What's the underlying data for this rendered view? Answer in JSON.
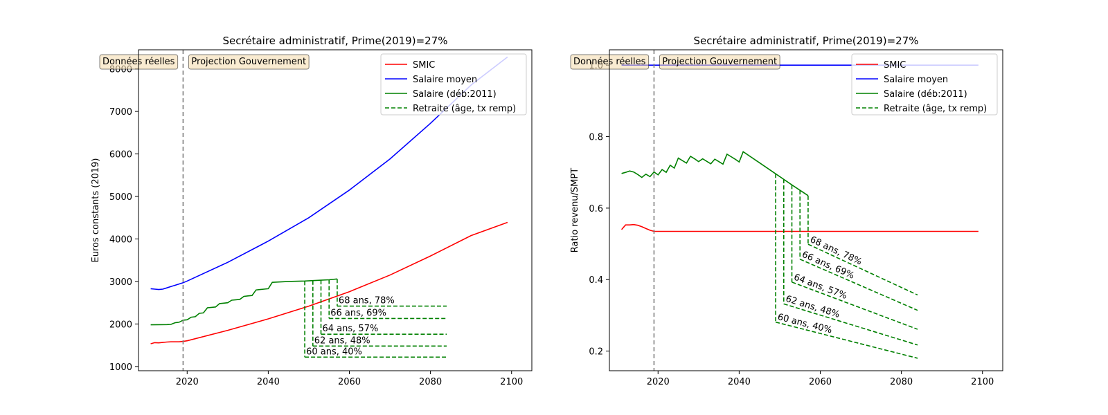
{
  "colors": {
    "smic": "#ff0000",
    "salaire_moyen": "#0000ff",
    "salaire_green": "#008000",
    "vline": "#808080",
    "box_fill": "#f5deb3",
    "legend_border": "#cccccc"
  },
  "chart_data": [
    {
      "type": "line",
      "title": "Secrétaire administratif, Prime(2019)=27%",
      "xlabel": "",
      "ylabel": "Euros constants (2019)",
      "xlim": [
        2008,
        2105
      ],
      "ylim": [
        900,
        8450
      ],
      "xticks": [
        "2020",
        "2040",
        "2060",
        "2080",
        "2100"
      ],
      "yticks": [
        "1000",
        "2000",
        "3000",
        "4000",
        "5000",
        "6000",
        "7000",
        "8000"
      ],
      "annotations": {
        "left": "Données réelles",
        "right": "Projection Gouvernement",
        "vline_x": 2019
      },
      "legend": {
        "position": "upper right",
        "entries": [
          "SMIC",
          "Salaire moyen",
          "Salaire (déb:2011)",
          "Retraite (âge, tx remp)"
        ]
      },
      "series": [
        {
          "name": "SMIC",
          "x": [
            2011,
            2012,
            2013,
            2014,
            2015,
            2016,
            2017,
            2018,
            2019,
            2020,
            2030,
            2040,
            2050,
            2060,
            2070,
            2080,
            2090,
            2099
          ],
          "y": [
            1535,
            1560,
            1555,
            1565,
            1575,
            1580,
            1580,
            1580,
            1590,
            1605,
            1850,
            2120,
            2420,
            2760,
            3150,
            3600,
            4080,
            4390
          ]
        },
        {
          "name": "Salaire moyen",
          "x": [
            2011,
            2012,
            2013,
            2014,
            2015,
            2016,
            2017,
            2018,
            2019,
            2020,
            2030,
            2040,
            2050,
            2060,
            2070,
            2080,
            2090,
            2099
          ],
          "y": [
            2830,
            2820,
            2810,
            2820,
            2850,
            2880,
            2910,
            2940,
            2970,
            3010,
            3450,
            3950,
            4500,
            5150,
            5880,
            6720,
            7620,
            8280
          ]
        },
        {
          "name": "Salaire (déb:2011)",
          "x": [
            2011,
            2015,
            2016,
            2017,
            2018,
            2019,
            2020,
            2021,
            2022,
            2023,
            2024,
            2025,
            2026,
            2027,
            2028,
            2029,
            2030,
            2031,
            2032,
            2033,
            2034,
            2035,
            2036,
            2037,
            2038,
            2039,
            2040,
            2041,
            2045,
            2049,
            2051,
            2053,
            2055,
            2057
          ],
          "y": [
            1980,
            1985,
            1990,
            2030,
            2040,
            2090,
            2100,
            2160,
            2170,
            2250,
            2260,
            2380,
            2390,
            2400,
            2480,
            2490,
            2500,
            2560,
            2570,
            2580,
            2650,
            2660,
            2670,
            2800,
            2810,
            2820,
            2830,
            2980,
            3000,
            3010,
            3020,
            3030,
            3040,
            3060
          ]
        }
      ],
      "retirements": [
        {
          "label": "60 ans, 40%",
          "x0": 2049,
          "x1": 2084,
          "y_top": 3010,
          "y": [
            1220,
            1220
          ]
        },
        {
          "label": "62 ans, 48%",
          "x0": 2051,
          "x1": 2084,
          "y_top": 3020,
          "y": [
            1480,
            1480
          ]
        },
        {
          "label": "64 ans, 57%",
          "x0": 2053,
          "x1": 2084,
          "y_top": 3030,
          "y": [
            1760,
            1760
          ]
        },
        {
          "label": "66 ans, 69%",
          "x0": 2055,
          "x1": 2084,
          "y_top": 3040,
          "y": [
            2130,
            2130
          ]
        },
        {
          "label": "68 ans, 78%",
          "x0": 2057,
          "x1": 2084,
          "y_top": 3060,
          "y": [
            2420,
            2420
          ]
        }
      ]
    },
    {
      "type": "line",
      "title": "Secrétaire administratif, Prime(2019)=27%",
      "xlabel": "",
      "ylabel": "Ratio revenu/SMPT",
      "xlim": [
        2008,
        2105
      ],
      "ylim": [
        0.145,
        1.043
      ],
      "xticks": [
        "2020",
        "2040",
        "2060",
        "2080",
        "2100"
      ],
      "yticks": [
        "0.2",
        "0.4",
        "0.6",
        "0.8",
        "1.0"
      ],
      "annotations": {
        "left": "Données réelles",
        "right": "Projection Gouvernement",
        "vline_x": 2019
      },
      "legend": {
        "position": "upper right",
        "entries": [
          "SMIC",
          "Salaire moyen",
          "Salaire (déb:2011)",
          "Retraite (âge, tx remp)"
        ]
      },
      "series": [
        {
          "name": "SMIC",
          "x": [
            2011,
            2012,
            2013,
            2014,
            2015,
            2016,
            2017,
            2018,
            2019,
            2020,
            2099
          ],
          "y": [
            0.54,
            0.553,
            0.553,
            0.554,
            0.552,
            0.548,
            0.543,
            0.538,
            0.535,
            0.535,
            0.535
          ]
        },
        {
          "name": "Salaire moyen",
          "x": [
            2011,
            2099
          ],
          "y": [
            1.0,
            1.0
          ]
        },
        {
          "name": "Salaire (déb:2011)",
          "x": [
            2011,
            2012,
            2013,
            2014,
            2015,
            2016,
            2017,
            2018,
            2019,
            2020,
            2021,
            2022,
            2023,
            2024,
            2025,
            2026,
            2027,
            2028,
            2029,
            2030,
            2031,
            2032,
            2033,
            2034,
            2035,
            2036,
            2037,
            2038,
            2039,
            2040,
            2041,
            2045,
            2049,
            2053,
            2057
          ],
          "y": [
            0.697,
            0.7,
            0.704,
            0.701,
            0.694,
            0.686,
            0.695,
            0.688,
            0.701,
            0.693,
            0.708,
            0.7,
            0.72,
            0.712,
            0.74,
            0.733,
            0.726,
            0.745,
            0.738,
            0.73,
            0.738,
            0.731,
            0.724,
            0.737,
            0.73,
            0.723,
            0.751,
            0.744,
            0.737,
            0.729,
            0.758,
            0.727,
            0.696,
            0.665,
            0.635
          ]
        }
      ],
      "retirements": [
        {
          "label": "60 ans, 40%",
          "x0": 2049,
          "x1": 2084,
          "y_top": 0.696,
          "y": [
            0.281,
            0.18
          ]
        },
        {
          "label": "62 ans, 48%",
          "x0": 2051,
          "x1": 2084,
          "y_top": 0.681,
          "y": [
            0.332,
            0.217
          ]
        },
        {
          "label": "64 ans, 57%",
          "x0": 2053,
          "x1": 2084,
          "y_top": 0.665,
          "y": [
            0.393,
            0.261
          ]
        },
        {
          "label": "66 ans, 69%",
          "x0": 2055,
          "x1": 2084,
          "y_top": 0.65,
          "y": [
            0.457,
            0.314
          ]
        },
        {
          "label": "68 ans, 78%",
          "x0": 2057,
          "x1": 2084,
          "y_top": 0.635,
          "y": [
            0.499,
            0.357
          ]
        }
      ]
    }
  ]
}
